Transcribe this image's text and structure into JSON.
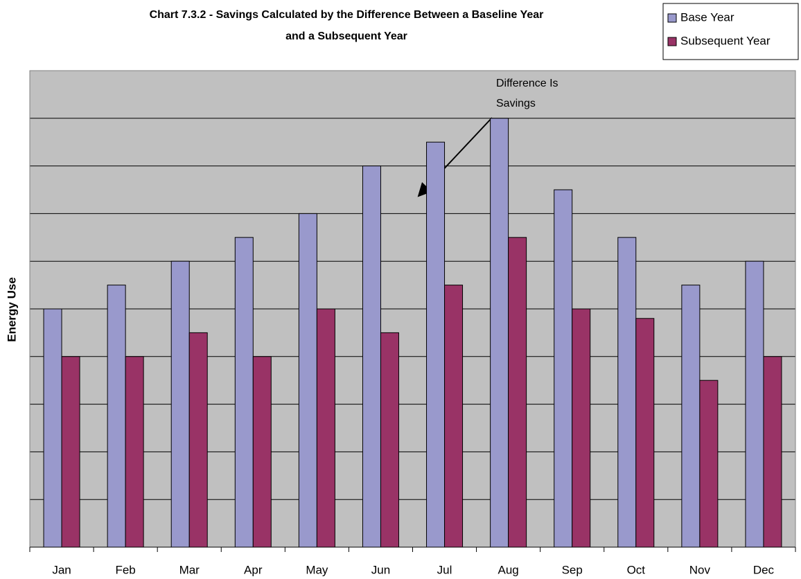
{
  "chart_data": {
    "type": "bar",
    "title": [
      "Chart 7.3.2 - Savings Calculated by the Difference Between a Baseline Year",
      "and a Subsequent Year"
    ],
    "y_label": "Energy Use",
    "categories": [
      "Jan",
      "Feb",
      "Mar",
      "Apr",
      "May",
      "Jun",
      "Jul",
      "Aug",
      "Sep",
      "Oct",
      "Nov",
      "Dec"
    ],
    "series": [
      {
        "name": "Base Year",
        "color": "#9999cc",
        "values": [
          5,
          5.5,
          6,
          6.5,
          7,
          8,
          8.5,
          9,
          7.5,
          6.5,
          5.5,
          6
        ]
      },
      {
        "name": "Subsequent Year",
        "color": "#993366",
        "values": [
          4,
          4,
          4.5,
          4,
          5,
          4.5,
          5.5,
          6.5,
          5,
          4.8,
          3.5,
          4
        ]
      }
    ],
    "ylim": [
      0,
      10
    ],
    "yticks": [
      0,
      1,
      2,
      3,
      4,
      5,
      6,
      7,
      8,
      9,
      10
    ],
    "grid": true,
    "annotation": [
      "Difference Is",
      "Savings"
    ]
  }
}
